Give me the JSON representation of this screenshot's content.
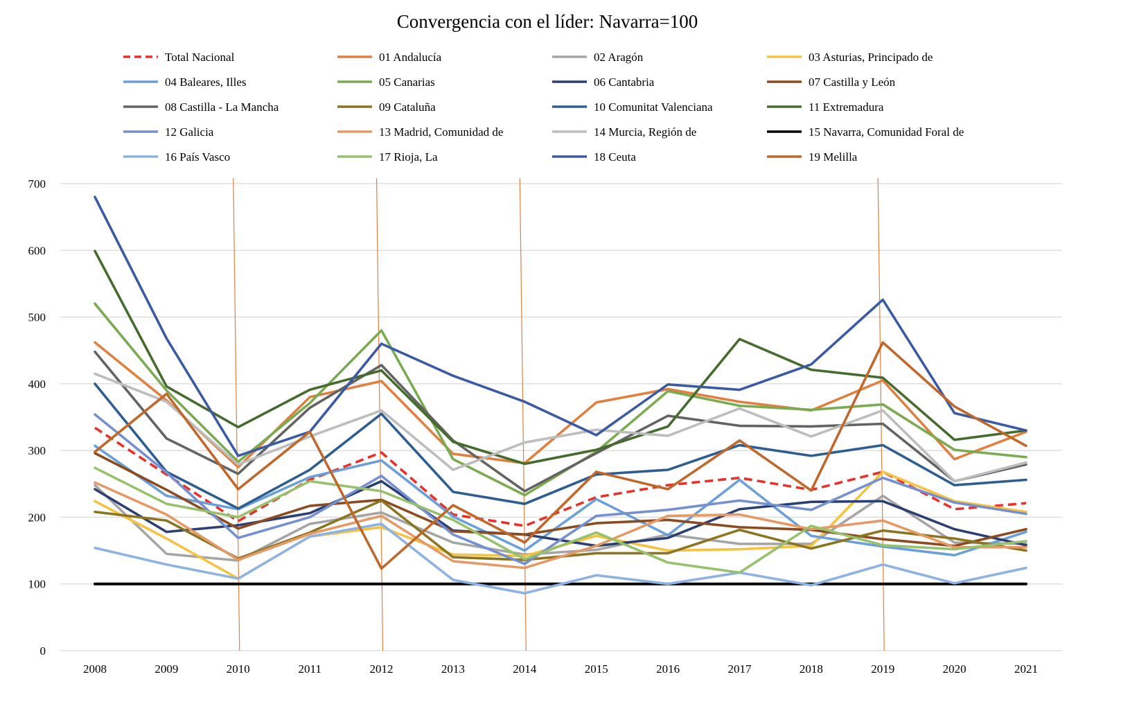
{
  "chart_data": {
    "type": "line",
    "title": "Convergencia con el líder: Navarra=100",
    "xlabel": "",
    "ylabel": "",
    "x": [
      2008,
      2009,
      2010,
      2011,
      2012,
      2013,
      2014,
      2015,
      2016,
      2017,
      2018,
      2019,
      2020,
      2021
    ],
    "ylim": [
      0,
      700
    ],
    "yticks": [
      0,
      100,
      200,
      300,
      400,
      500,
      600,
      700
    ],
    "grid": "horizontal",
    "legend_position": "top",
    "vertical_markers": [
      2010,
      2012,
      2014,
      2019
    ],
    "vertical_marker_color": "#e08040",
    "series": [
      {
        "name": "Total Nacional",
        "color": "#e8312a",
        "dashed": true,
        "values": [
          334,
          264,
          194,
          256,
          297,
          204,
          187,
          230,
          248,
          259,
          241,
          268,
          212,
          221
        ]
      },
      {
        "name": "01 Andalucía",
        "color": "#e08040",
        "values": [
          462,
          375,
          275,
          380,
          404,
          295,
          281,
          372,
          392,
          373,
          360,
          405,
          287,
          328
        ]
      },
      {
        "name": "02 Aragón",
        "color": "#a5a5a5",
        "values": [
          248,
          145,
          135,
          190,
          207,
          162,
          144,
          151,
          174,
          160,
          160,
          232,
          162,
          160
        ]
      },
      {
        "name": "03 Asturias, Principado de",
        "color": "#f5c242",
        "values": [
          224,
          168,
          108,
          171,
          185,
          144,
          142,
          172,
          150,
          152,
          157,
          268,
          224,
          208
        ]
      },
      {
        "name": "04 Baleares, Illes",
        "color": "#6a9fd8",
        "values": [
          307,
          232,
          212,
          260,
          285,
          201,
          150,
          227,
          173,
          256,
          172,
          156,
          143,
          178
        ]
      },
      {
        "name": "05 Canarias",
        "color": "#7aab50",
        "values": [
          520,
          390,
          283,
          371,
          480,
          287,
          233,
          298,
          389,
          367,
          361,
          369,
          301,
          290
        ]
      },
      {
        "name": "06 Cantabria",
        "color": "#2c3f73",
        "values": [
          242,
          178,
          188,
          206,
          254,
          180,
          174,
          157,
          169,
          212,
          223,
          224,
          182,
          158
        ]
      },
      {
        "name": "07 Castilla y León",
        "color": "#8b4a1f",
        "values": [
          296,
          241,
          183,
          217,
          226,
          179,
          174,
          191,
          196,
          185,
          181,
          167,
          157,
          182
        ]
      },
      {
        "name": "08 Castilla - La Mancha",
        "color": "#636363",
        "values": [
          448,
          318,
          265,
          364,
          428,
          315,
          239,
          296,
          352,
          337,
          336,
          340,
          254,
          279
        ]
      },
      {
        "name": "09 Cataluña",
        "color": "#8c7520",
        "values": [
          208,
          195,
          138,
          177,
          225,
          140,
          136,
          146,
          146,
          181,
          153,
          180,
          168,
          150
        ]
      },
      {
        "name": "10 Comunitat Valenciana",
        "color": "#2e5e91",
        "values": [
          400,
          268,
          213,
          271,
          355,
          238,
          220,
          264,
          271,
          308,
          292,
          308,
          248,
          256
        ]
      },
      {
        "name": "11 Extremadura",
        "color": "#466b2e",
        "values": [
          599,
          396,
          335,
          391,
          420,
          313,
          280,
          301,
          336,
          467,
          421,
          409,
          316,
          330
        ]
      },
      {
        "name": "12 Galicia",
        "color": "#7590d0",
        "values": [
          354,
          267,
          169,
          200,
          262,
          174,
          130,
          202,
          211,
          225,
          211,
          259,
          222,
          205
        ]
      },
      {
        "name": "13 Madrid, Comunidad de",
        "color": "#e59a66",
        "values": [
          252,
          204,
          136,
          175,
          202,
          134,
          124,
          157,
          202,
          204,
          182,
          195,
          155,
          155
        ]
      },
      {
        "name": "14 Murcia, Región de",
        "color": "#bdbdbd",
        "values": [
          415,
          373,
          279,
          321,
          360,
          271,
          312,
          331,
          322,
          363,
          321,
          360,
          254,
          282
        ]
      },
      {
        "name": "15 Navarra, Comunidad Foral de",
        "color": "#000000",
        "values": [
          100,
          100,
          100,
          100,
          100,
          100,
          100,
          100,
          100,
          100,
          100,
          100,
          100,
          100
        ]
      },
      {
        "name": "16 País Vasco",
        "color": "#8db3e2",
        "values": [
          154,
          129,
          108,
          171,
          190,
          106,
          86,
          113,
          100,
          117,
          98,
          129,
          101,
          124
        ]
      },
      {
        "name": "17 Rioja, La",
        "color": "#98c16d",
        "values": [
          274,
          220,
          200,
          254,
          239,
          196,
          137,
          177,
          132,
          117,
          187,
          158,
          152,
          164
        ]
      },
      {
        "name": "18 Ceuta",
        "color": "#3a5aa3",
        "values": [
          680,
          468,
          292,
          328,
          460,
          412,
          373,
          323,
          399,
          391,
          429,
          526,
          356,
          330
        ]
      },
      {
        "name": "19 Melilla",
        "color": "#c0682c",
        "values": [
          298,
          385,
          242,
          328,
          123,
          218,
          162,
          268,
          242,
          315,
          240,
          462,
          366,
          307
        ]
      }
    ]
  }
}
